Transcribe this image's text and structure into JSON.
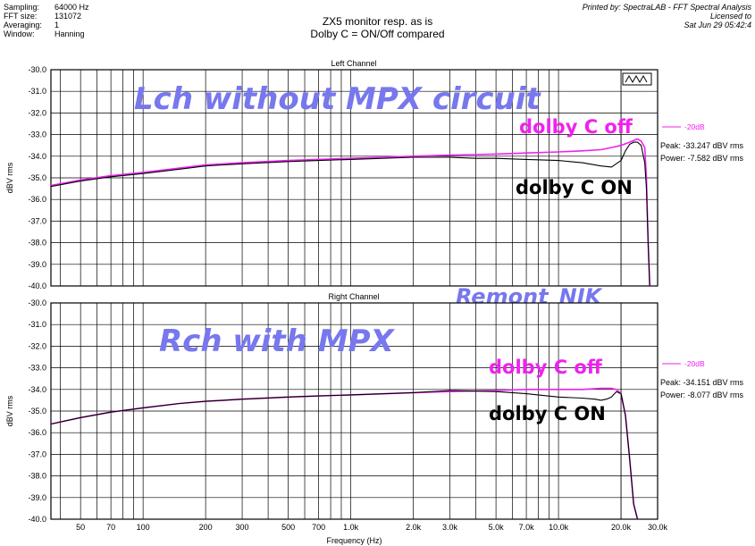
{
  "header": {
    "labels": [
      "Sampling:",
      "FFT size:",
      "Averaging:",
      "Window:"
    ],
    "values": [
      "64000 Hz",
      "131072",
      "1",
      "Hanning"
    ],
    "title_line1": "ZX5 monitor resp. as is",
    "title_line2": "Dolby C = ON/Off compared",
    "printed_by": "Printed by: SpectraLAB - FFT Spectral Analysis",
    "licensed": "Licensed to",
    "date": "Sat Jun 29 05:42:4"
  },
  "colors": {
    "off": "#ee22ee",
    "on": "#000000",
    "annot_blue": "#7777ee",
    "grid": "#000000"
  },
  "chart_data": [
    {
      "type": "line",
      "title": "Left Channel",
      "xlabel": "",
      "ylabel": "dBV rms",
      "xscale": "log",
      "xlim": [
        36,
        30000
      ],
      "ylim": [
        -40,
        -30
      ],
      "grid": true,
      "y_ticks": [
        "-30.0",
        "-31.0",
        "-32.0",
        "-33.0",
        "-34.0",
        "-35.0",
        "-36.0",
        "-37.0",
        "-38.0",
        "-39.0",
        "-40.0"
      ],
      "legend": {
        "label": "-20dB",
        "peak": "Peak: -33.247 dBV rms",
        "power": "Power: -7.582 dBV rms"
      },
      "annotations": {
        "main": "Lch without MPX circuit",
        "off": "dolby C  off",
        "on": "dolby C  ON",
        "watermark": "Remont_NIK"
      },
      "series": [
        {
          "label": "dolby C  off",
          "color": "#ee22ee",
          "x": [
            36,
            50,
            70,
            100,
            150,
            200,
            300,
            500,
            700,
            1000,
            2000,
            3000,
            5000,
            7000,
            10000,
            13000,
            16000,
            18000,
            20000,
            22000,
            24000,
            25000,
            26000,
            26500,
            27000,
            27500
          ],
          "y": [
            -35.35,
            -35.1,
            -34.9,
            -34.75,
            -34.55,
            -34.4,
            -34.3,
            -34.2,
            -34.15,
            -34.1,
            -34.0,
            -33.95,
            -33.9,
            -33.85,
            -33.8,
            -33.75,
            -33.7,
            -33.6,
            -33.5,
            -33.35,
            -33.2,
            -33.3,
            -33.6,
            -35.0,
            -38.0,
            -40.0
          ]
        },
        {
          "label": "dolby C  ON",
          "color": "#000000",
          "x": [
            36,
            50,
            70,
            100,
            150,
            200,
            300,
            500,
            700,
            1000,
            2000,
            3000,
            4000,
            5000,
            7000,
            10000,
            13000,
            16000,
            18000,
            20000,
            21000,
            22000,
            23000,
            24000,
            25000,
            25500,
            26000,
            26500,
            27000,
            27500
          ],
          "y": [
            -35.4,
            -35.15,
            -34.95,
            -34.8,
            -34.6,
            -34.45,
            -34.35,
            -34.25,
            -34.2,
            -34.15,
            -34.05,
            -34.05,
            -34.1,
            -34.1,
            -34.15,
            -34.2,
            -34.3,
            -34.45,
            -34.5,
            -34.2,
            -33.75,
            -33.45,
            -33.35,
            -33.35,
            -33.5,
            -33.9,
            -34.3,
            -35.5,
            -38.0,
            -40.0
          ]
        }
      ]
    },
    {
      "type": "line",
      "title": "Right Channel",
      "xlabel": "Frequency (Hz)",
      "ylabel": "dBV rms",
      "xscale": "log",
      "xlim": [
        36,
        30000
      ],
      "ylim": [
        -40,
        -30
      ],
      "grid": true,
      "y_ticks": [
        "-30.0",
        "-31.0",
        "-32.0",
        "-33.0",
        "-34.0",
        "-35.0",
        "-36.0",
        "-37.0",
        "-38.0",
        "-39.0",
        "-40.0"
      ],
      "x_ticks": [
        {
          "v": 50,
          "label": "50"
        },
        {
          "v": 70,
          "label": "70"
        },
        {
          "v": 100,
          "label": "100"
        },
        {
          "v": 200,
          "label": "200"
        },
        {
          "v": 300,
          "label": "300"
        },
        {
          "v": 500,
          "label": "500"
        },
        {
          "v": 700,
          "label": "700"
        },
        {
          "v": 1000,
          "label": "1.0k"
        },
        {
          "v": 2000,
          "label": "2.0k"
        },
        {
          "v": 3000,
          "label": "3.0k"
        },
        {
          "v": 5000,
          "label": "5.0k"
        },
        {
          "v": 7000,
          "label": "7.0k"
        },
        {
          "v": 10000,
          "label": "10.0k"
        },
        {
          "v": 20000,
          "label": "20.0k"
        },
        {
          "v": 30000,
          "label": "30.0k"
        }
      ],
      "legend": {
        "label": "-20dB",
        "peak": "Peak: -34.151 dBV rms",
        "power": "Power: -8.077 dBV rms"
      },
      "annotations": {
        "main": "Rch with MPX",
        "off": "dolby C  off",
        "on": "dolby C  ON"
      },
      "series": [
        {
          "label": "dolby C  off",
          "color": "#ee22ee",
          "x": [
            36,
            50,
            70,
            100,
            150,
            200,
            300,
            500,
            700,
            1000,
            2000,
            3000,
            5000,
            7000,
            10000,
            13000,
            16000,
            18000,
            19000,
            20000,
            21000,
            22000,
            23000,
            24000
          ],
          "y": [
            -35.6,
            -35.3,
            -35.05,
            -34.85,
            -34.65,
            -34.55,
            -34.45,
            -34.35,
            -34.3,
            -34.25,
            -34.15,
            -34.1,
            -34.05,
            -34.0,
            -34.0,
            -34.0,
            -33.95,
            -33.95,
            -34.0,
            -34.2,
            -35.2,
            -37.2,
            -39.3,
            -40.0
          ]
        },
        {
          "label": "dolby C  ON",
          "color": "#000000",
          "x": [
            36,
            50,
            70,
            100,
            150,
            200,
            300,
            500,
            700,
            1000,
            2000,
            3000,
            5000,
            7000,
            10000,
            13000,
            15000,
            16000,
            17000,
            18000,
            19000,
            20000,
            21000,
            22000,
            23000,
            24000
          ],
          "y": [
            -35.6,
            -35.3,
            -35.05,
            -34.85,
            -34.65,
            -34.55,
            -34.45,
            -34.35,
            -34.3,
            -34.25,
            -34.15,
            -34.05,
            -34.1,
            -34.2,
            -34.35,
            -34.4,
            -34.45,
            -34.5,
            -34.45,
            -34.35,
            -34.1,
            -34.2,
            -35.2,
            -37.2,
            -39.3,
            -40.0
          ]
        }
      ]
    }
  ]
}
